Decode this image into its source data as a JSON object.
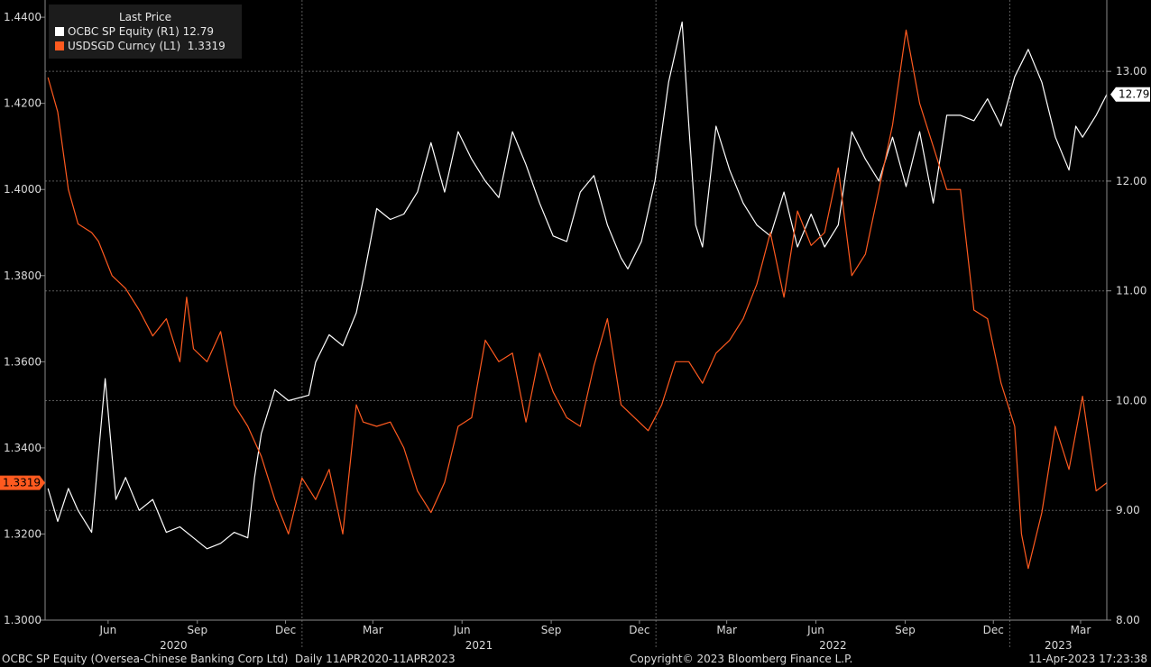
{
  "legend": {
    "title": "Last Price",
    "series_a": {
      "name": "OCBC SP Equity",
      "axis": "(R1)",
      "last": "12.79",
      "color": "#ffffff"
    },
    "series_b": {
      "name": "USDSGD Curncy",
      "axis": "(L1)",
      "last": "1.3319",
      "color": "#ff5a1f"
    }
  },
  "footer": {
    "left": "OCBC SP Equity (Oversea-Chinese Banking Corp Ltd)  Daily 11APR2020-11APR2023",
    "center": "Copyright© 2023 Bloomberg Finance L.P.",
    "right": "11-Apr-2023 17:23:38"
  },
  "chart_data": {
    "type": "line",
    "grid": true,
    "x_range": [
      "2020-04-11",
      "2023-04-11"
    ],
    "x_tick_labels": [
      "Jun",
      "Sep",
      "Dec",
      "Mar",
      "Jun",
      "Sep",
      "Dec",
      "Mar",
      "Jun",
      "Sep",
      "Dec",
      "Mar"
    ],
    "x_year_labels": [
      "2020",
      "2021",
      "2022",
      "2023"
    ],
    "y_left": {
      "min": 1.3,
      "max": 1.444,
      "ticks": [
        "1.3000",
        "1.3200",
        "1.3400",
        "1.3600",
        "1.3800",
        "1.4000",
        "1.4200",
        "1.4400"
      ],
      "last_label": "1.3319"
    },
    "y_right": {
      "min": 8.0,
      "max": 13.65,
      "ticks": [
        "8.00",
        "9.00",
        "10.00",
        "11.00",
        "12.00",
        "13.00"
      ],
      "last_label": "12.79"
    },
    "series": [
      {
        "name": "OCBC SP Equity",
        "axis": "right",
        "color": "#ffffff",
        "x": [
          "2020-04-14",
          "2020-04-24",
          "2020-05-05",
          "2020-05-15",
          "2020-05-29",
          "2020-06-05",
          "2020-06-12",
          "2020-06-23",
          "2020-07-03",
          "2020-07-17",
          "2020-07-31",
          "2020-08-14",
          "2020-08-28",
          "2020-09-11",
          "2020-09-25",
          "2020-10-09",
          "2020-10-23",
          "2020-11-06",
          "2020-11-13",
          "2020-11-20",
          "2020-12-04",
          "2020-12-18",
          "2021-01-08",
          "2021-01-15",
          "2021-01-29",
          "2021-02-12",
          "2021-02-26",
          "2021-03-05",
          "2021-03-19",
          "2021-04-02",
          "2021-04-16",
          "2021-04-30",
          "2021-05-14",
          "2021-05-28",
          "2021-06-11",
          "2021-06-25",
          "2021-07-09",
          "2021-07-23",
          "2021-08-06",
          "2021-08-20",
          "2021-09-03",
          "2021-09-17",
          "2021-10-01",
          "2021-10-15",
          "2021-10-29",
          "2021-11-12",
          "2021-11-26",
          "2021-12-03",
          "2021-12-17",
          "2021-12-31",
          "2022-01-14",
          "2022-01-28",
          "2022-02-04",
          "2022-02-11",
          "2022-02-18",
          "2022-03-04",
          "2022-03-18",
          "2022-04-01",
          "2022-04-15",
          "2022-04-29",
          "2022-05-13",
          "2022-05-27",
          "2022-06-10",
          "2022-06-24",
          "2022-07-08",
          "2022-07-22",
          "2022-08-05",
          "2022-08-19",
          "2022-09-02",
          "2022-09-16",
          "2022-09-30",
          "2022-10-14",
          "2022-10-28",
          "2022-11-11",
          "2022-11-25",
          "2022-12-09",
          "2022-12-23",
          "2023-01-06",
          "2023-01-20",
          "2023-02-03",
          "2023-02-17",
          "2023-03-03",
          "2023-03-10",
          "2023-03-17",
          "2023-03-31",
          "2023-04-11"
        ],
        "y": [
          9.2,
          8.9,
          9.2,
          9.0,
          8.8,
          9.5,
          10.2,
          9.1,
          9.3,
          9.0,
          9.1,
          8.8,
          8.85,
          8.75,
          8.65,
          8.7,
          8.8,
          8.75,
          9.3,
          9.7,
          10.1,
          10.0,
          10.05,
          10.35,
          10.6,
          10.5,
          10.8,
          11.1,
          11.75,
          11.65,
          11.7,
          11.9,
          12.35,
          11.9,
          12.45,
          12.2,
          12.0,
          11.85,
          12.45,
          12.15,
          11.8,
          11.5,
          11.45,
          11.9,
          12.05,
          11.6,
          11.3,
          11.2,
          11.45,
          12.0,
          12.9,
          13.45,
          12.5,
          11.6,
          11.4,
          12.5,
          12.1,
          11.8,
          11.6,
          11.5,
          11.9,
          11.4,
          11.7,
          11.4,
          11.6,
          12.45,
          12.2,
          12.0,
          12.4,
          11.95,
          12.45,
          11.8,
          12.6,
          12.6,
          12.55,
          12.75,
          12.5,
          12.95,
          13.2,
          12.9,
          12.4,
          12.1,
          12.5,
          12.4,
          12.6,
          12.79
        ]
      },
      {
        "name": "USDSGD Curncy",
        "axis": "left",
        "color": "#ff5a1f",
        "x": [
          "2020-04-14",
          "2020-04-24",
          "2020-05-05",
          "2020-05-15",
          "2020-05-29",
          "2020-06-05",
          "2020-06-19",
          "2020-07-03",
          "2020-07-17",
          "2020-07-31",
          "2020-08-14",
          "2020-08-28",
          "2020-09-04",
          "2020-09-11",
          "2020-09-25",
          "2020-10-09",
          "2020-10-23",
          "2020-11-06",
          "2020-11-20",
          "2020-12-04",
          "2020-12-18",
          "2021-01-01",
          "2021-01-15",
          "2021-01-29",
          "2021-02-12",
          "2021-02-26",
          "2021-03-05",
          "2021-03-19",
          "2021-04-02",
          "2021-04-16",
          "2021-04-30",
          "2021-05-14",
          "2021-05-28",
          "2021-06-11",
          "2021-06-25",
          "2021-07-09",
          "2021-07-23",
          "2021-08-06",
          "2021-08-20",
          "2021-09-03",
          "2021-09-17",
          "2021-10-01",
          "2021-10-15",
          "2021-10-29",
          "2021-11-12",
          "2021-11-26",
          "2021-12-10",
          "2021-12-24",
          "2022-01-07",
          "2022-01-21",
          "2022-02-04",
          "2022-02-18",
          "2022-03-04",
          "2022-03-18",
          "2022-04-01",
          "2022-04-15",
          "2022-04-29",
          "2022-05-13",
          "2022-05-27",
          "2022-06-10",
          "2022-06-24",
          "2022-07-08",
          "2022-07-22",
          "2022-08-05",
          "2022-08-19",
          "2022-09-02",
          "2022-09-16",
          "2022-09-30",
          "2022-10-14",
          "2022-10-28",
          "2022-11-11",
          "2022-11-25",
          "2022-12-09",
          "2022-12-23",
          "2023-01-06",
          "2023-01-13",
          "2023-01-20",
          "2023-02-03",
          "2023-02-17",
          "2023-03-03",
          "2023-03-17",
          "2023-03-31",
          "2023-04-11"
        ],
        "y": [
          1.426,
          1.418,
          1.4,
          1.392,
          1.39,
          1.388,
          1.38,
          1.377,
          1.372,
          1.366,
          1.37,
          1.36,
          1.375,
          1.363,
          1.36,
          1.367,
          1.35,
          1.345,
          1.338,
          1.328,
          1.32,
          1.333,
          1.328,
          1.335,
          1.32,
          1.35,
          1.346,
          1.345,
          1.346,
          1.34,
          1.33,
          1.325,
          1.332,
          1.345,
          1.347,
          1.365,
          1.36,
          1.362,
          1.346,
          1.362,
          1.353,
          1.347,
          1.345,
          1.359,
          1.37,
          1.35,
          1.347,
          1.344,
          1.35,
          1.36,
          1.36,
          1.355,
          1.362,
          1.365,
          1.37,
          1.378,
          1.39,
          1.375,
          1.395,
          1.387,
          1.39,
          1.405,
          1.38,
          1.385,
          1.4,
          1.415,
          1.437,
          1.42,
          1.41,
          1.4,
          1.4,
          1.372,
          1.37,
          1.355,
          1.345,
          1.32,
          1.312,
          1.325,
          1.345,
          1.335,
          1.352,
          1.33,
          1.3319
        ]
      }
    ]
  }
}
